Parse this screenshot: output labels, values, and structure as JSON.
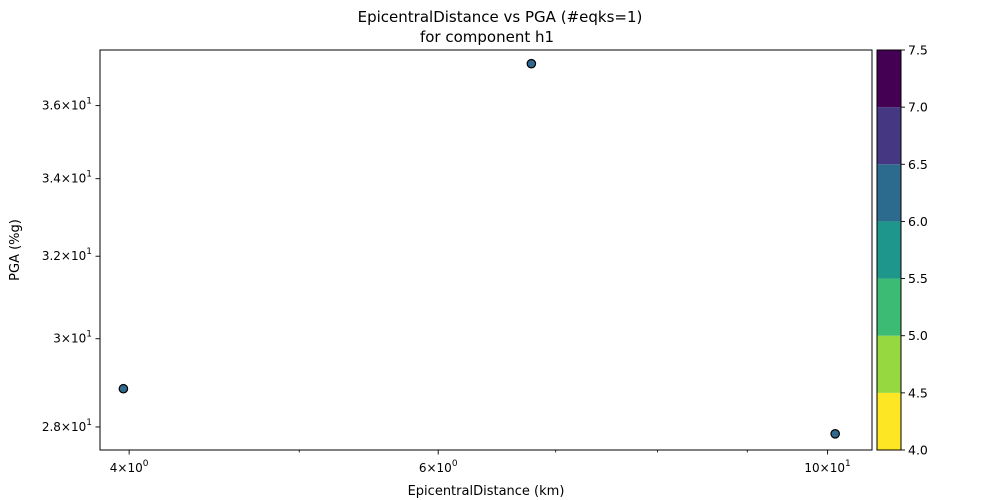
{
  "chart_data": {
    "type": "scatter",
    "title": "EpicentralDistance vs PGA (#eqks=1)",
    "subtitle": "for component h1",
    "xlabel": "EpicentralDistance (km)",
    "ylabel": "PGA (%g)",
    "x_scale": "log",
    "y_scale": "log",
    "xlim": [
      3.85,
      10.6
    ],
    "ylim": [
      27.5,
      37.6
    ],
    "x_major_ticks": [
      {
        "value": 4,
        "base": "4",
        "exp": "0"
      },
      {
        "value": 6,
        "base": "6",
        "exp": "0"
      },
      {
        "value": 10,
        "base": "10",
        "exp": "1"
      }
    ],
    "x_minor_ticks": [
      3,
      5,
      7,
      8,
      9
    ],
    "y_major_ticks": [
      {
        "value": 28,
        "base": "2.8",
        "exp": "1"
      },
      {
        "value": 30,
        "base": "3",
        "exp": "1"
      },
      {
        "value": 32,
        "base": "3.2",
        "exp": "1"
      },
      {
        "value": 34,
        "base": "3.4",
        "exp": "1"
      },
      {
        "value": 36,
        "base": "3.6",
        "exp": "1"
      }
    ],
    "grid": false,
    "points": [
      {
        "x": 3.97,
        "y": 28.85,
        "c": 6.0
      },
      {
        "x": 6.78,
        "y": 37.2,
        "c": 6.0
      },
      {
        "x": 10.1,
        "y": 27.85,
        "c": 6.0
      }
    ],
    "marker_color": "#31688e",
    "marker_edge_color": "#000000",
    "colorbar": {
      "min": 4.0,
      "max": 7.5,
      "levels": [
        {
          "from": 4.0,
          "to": 4.5,
          "color": "#fde725"
        },
        {
          "from": 4.5,
          "to": 5.0,
          "color": "#95d840"
        },
        {
          "from": 5.0,
          "to": 5.5,
          "color": "#3cbb75"
        },
        {
          "from": 5.5,
          "to": 6.0,
          "color": "#1f968b"
        },
        {
          "from": 6.0,
          "to": 6.5,
          "color": "#2d6b8e"
        },
        {
          "from": 6.5,
          "to": 7.0,
          "color": "#453781"
        },
        {
          "from": 7.0,
          "to": 7.5,
          "color": "#440154"
        }
      ],
      "tick_labels": [
        "4.0",
        "4.5",
        "5.0",
        "5.5",
        "6.0",
        "6.5",
        "7.0",
        "7.5"
      ]
    }
  }
}
